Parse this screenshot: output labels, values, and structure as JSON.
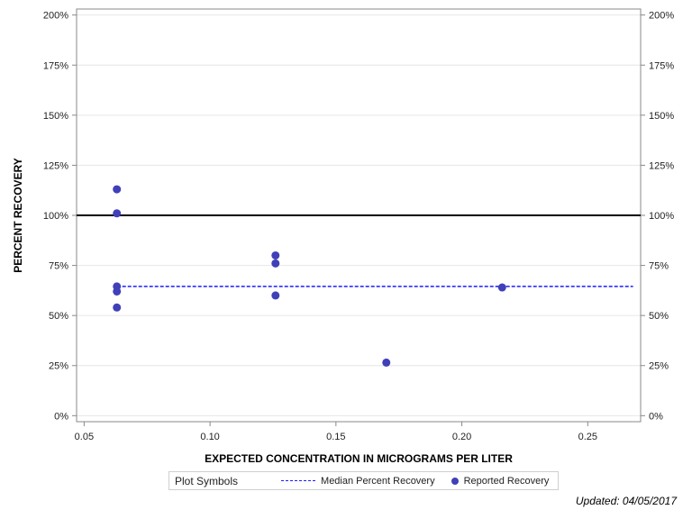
{
  "chart_data": {
    "type": "scatter",
    "xlabel": "EXPECTED CONCENTRATION IN MICROGRAMS PER LITER",
    "ylabel": "PERCENT RECOVERY",
    "xlim": [
      0.047,
      0.271
    ],
    "ylim": [
      -3,
      203
    ],
    "x_ticks": [
      0.05,
      0.1,
      0.15,
      0.2,
      0.25
    ],
    "x_tick_labels": [
      "0.05",
      "0.10",
      "0.15",
      "0.20",
      "0.25"
    ],
    "y_ticks": [
      0,
      25,
      50,
      75,
      100,
      125,
      150,
      175,
      200
    ],
    "y_tick_labels": [
      "0%",
      "25%",
      "50%",
      "75%",
      "100%",
      "125%",
      "150%",
      "175%",
      "200%"
    ],
    "reference_line": {
      "y": 100,
      "color": "#000000"
    },
    "median_line": {
      "name": "Median Percent Recovery",
      "y": 64.5,
      "x_start": 0.063,
      "x_end": 0.268,
      "color": "#1a1aff"
    },
    "series": [
      {
        "name": "Reported Recovery",
        "color": "#4040b8",
        "points": [
          {
            "x": 0.063,
            "y": 113
          },
          {
            "x": 0.063,
            "y": 101
          },
          {
            "x": 0.063,
            "y": 64.5
          },
          {
            "x": 0.063,
            "y": 62
          },
          {
            "x": 0.063,
            "y": 54
          },
          {
            "x": 0.126,
            "y": 80
          },
          {
            "x": 0.126,
            "y": 76
          },
          {
            "x": 0.126,
            "y": 60
          },
          {
            "x": 0.17,
            "y": 26.5
          },
          {
            "x": 0.216,
            "y": 64
          }
        ]
      }
    ],
    "grid": true,
    "legend_position": "bottom"
  },
  "legend": {
    "title": "Plot Symbols",
    "median_label": "Median Percent Recovery",
    "reported_label": "Reported Recovery"
  },
  "footer": {
    "updated": "Updated: 04/05/2017"
  }
}
